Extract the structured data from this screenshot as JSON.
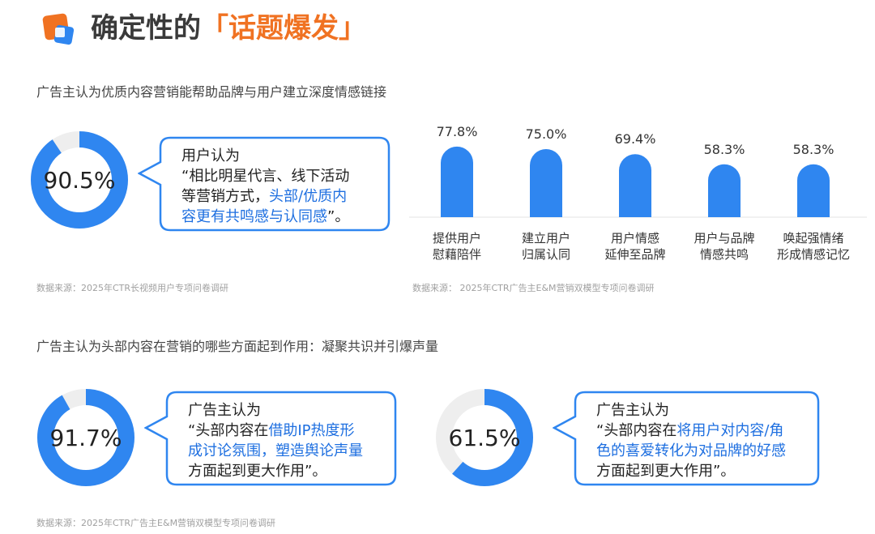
{
  "header": {
    "title_prefix": "确定性的",
    "title_highlight": "「话题爆发」"
  },
  "colors": {
    "accent_blue": "#2f86f0",
    "track_gray": "#eeeeee",
    "highlight_text": "#1e6fe0",
    "title_orange": "#f07222"
  },
  "section1": {
    "title": "广告主认为优质内容营销能帮助品牌与用户建立深度情感链接",
    "donut": {
      "value": 0.905,
      "label": "90.5%"
    },
    "bubble": {
      "line1": "用户认为",
      "line2": "“相比明星代言、线下活动",
      "line3_prefix": "等营销方式，",
      "line3_blue": "头部/优质内",
      "line4_blue": "容更有共鸣感与认同感",
      "line4_suffix": "”。"
    },
    "source_left": "数据来源：2025年CTR长视频用户专项问卷调研",
    "source_right": "数据来源：  2025年CTR广告主E&M营销双模型专项问卷调研"
  },
  "chart_data": {
    "type": "bar",
    "categories": [
      "提供用户慰藉陪伴",
      "建立用户归属认同",
      "用户情感延伸至品牌",
      "用户与品牌情感共鸣",
      "唤起强情绪形成情感记忆"
    ],
    "category_lines": [
      [
        "提供用户",
        "慰藉陪伴"
      ],
      [
        "建立用户",
        "归属认同"
      ],
      [
        "用户情感",
        "延伸至品牌"
      ],
      [
        "用户与品牌",
        "情感共鸣"
      ],
      [
        "唤起强情绪",
        "形成情感记忆"
      ]
    ],
    "values": [
      77.8,
      75.0,
      69.4,
      58.3,
      58.3
    ],
    "value_labels": [
      "77.8%",
      "75.0%",
      "69.4%",
      "58.3%",
      "58.3%"
    ],
    "ylim": [
      0,
      100
    ],
    "color": "#2f86f0"
  },
  "section2": {
    "title": "广告主认为头部内容在营销的哪些方面起到作用：凝聚共识并引爆声量",
    "donut_left": {
      "value": 0.917,
      "label": "91.7%"
    },
    "bubble_left": {
      "line1": "广告主认为",
      "line2_prefix": "“头部内容在",
      "line2_blue": "借助IP热度形",
      "line3_blue": "成讨论氛围，塑造舆论声量",
      "line4": "方面起到更大作用”。"
    },
    "donut_right": {
      "value": 0.615,
      "label": "61.5%"
    },
    "bubble_right": {
      "line1": "广告主认为",
      "line2_prefix": "“头部内容在",
      "line2_blue": "将用户对内容/角",
      "line3_blue": "色的喜爱转化为对品牌的好感",
      "line4": "方面起到更大作用”。"
    },
    "source": "数据来源：2025年CTR广告主E&M营销双模型专项问卷调研"
  }
}
